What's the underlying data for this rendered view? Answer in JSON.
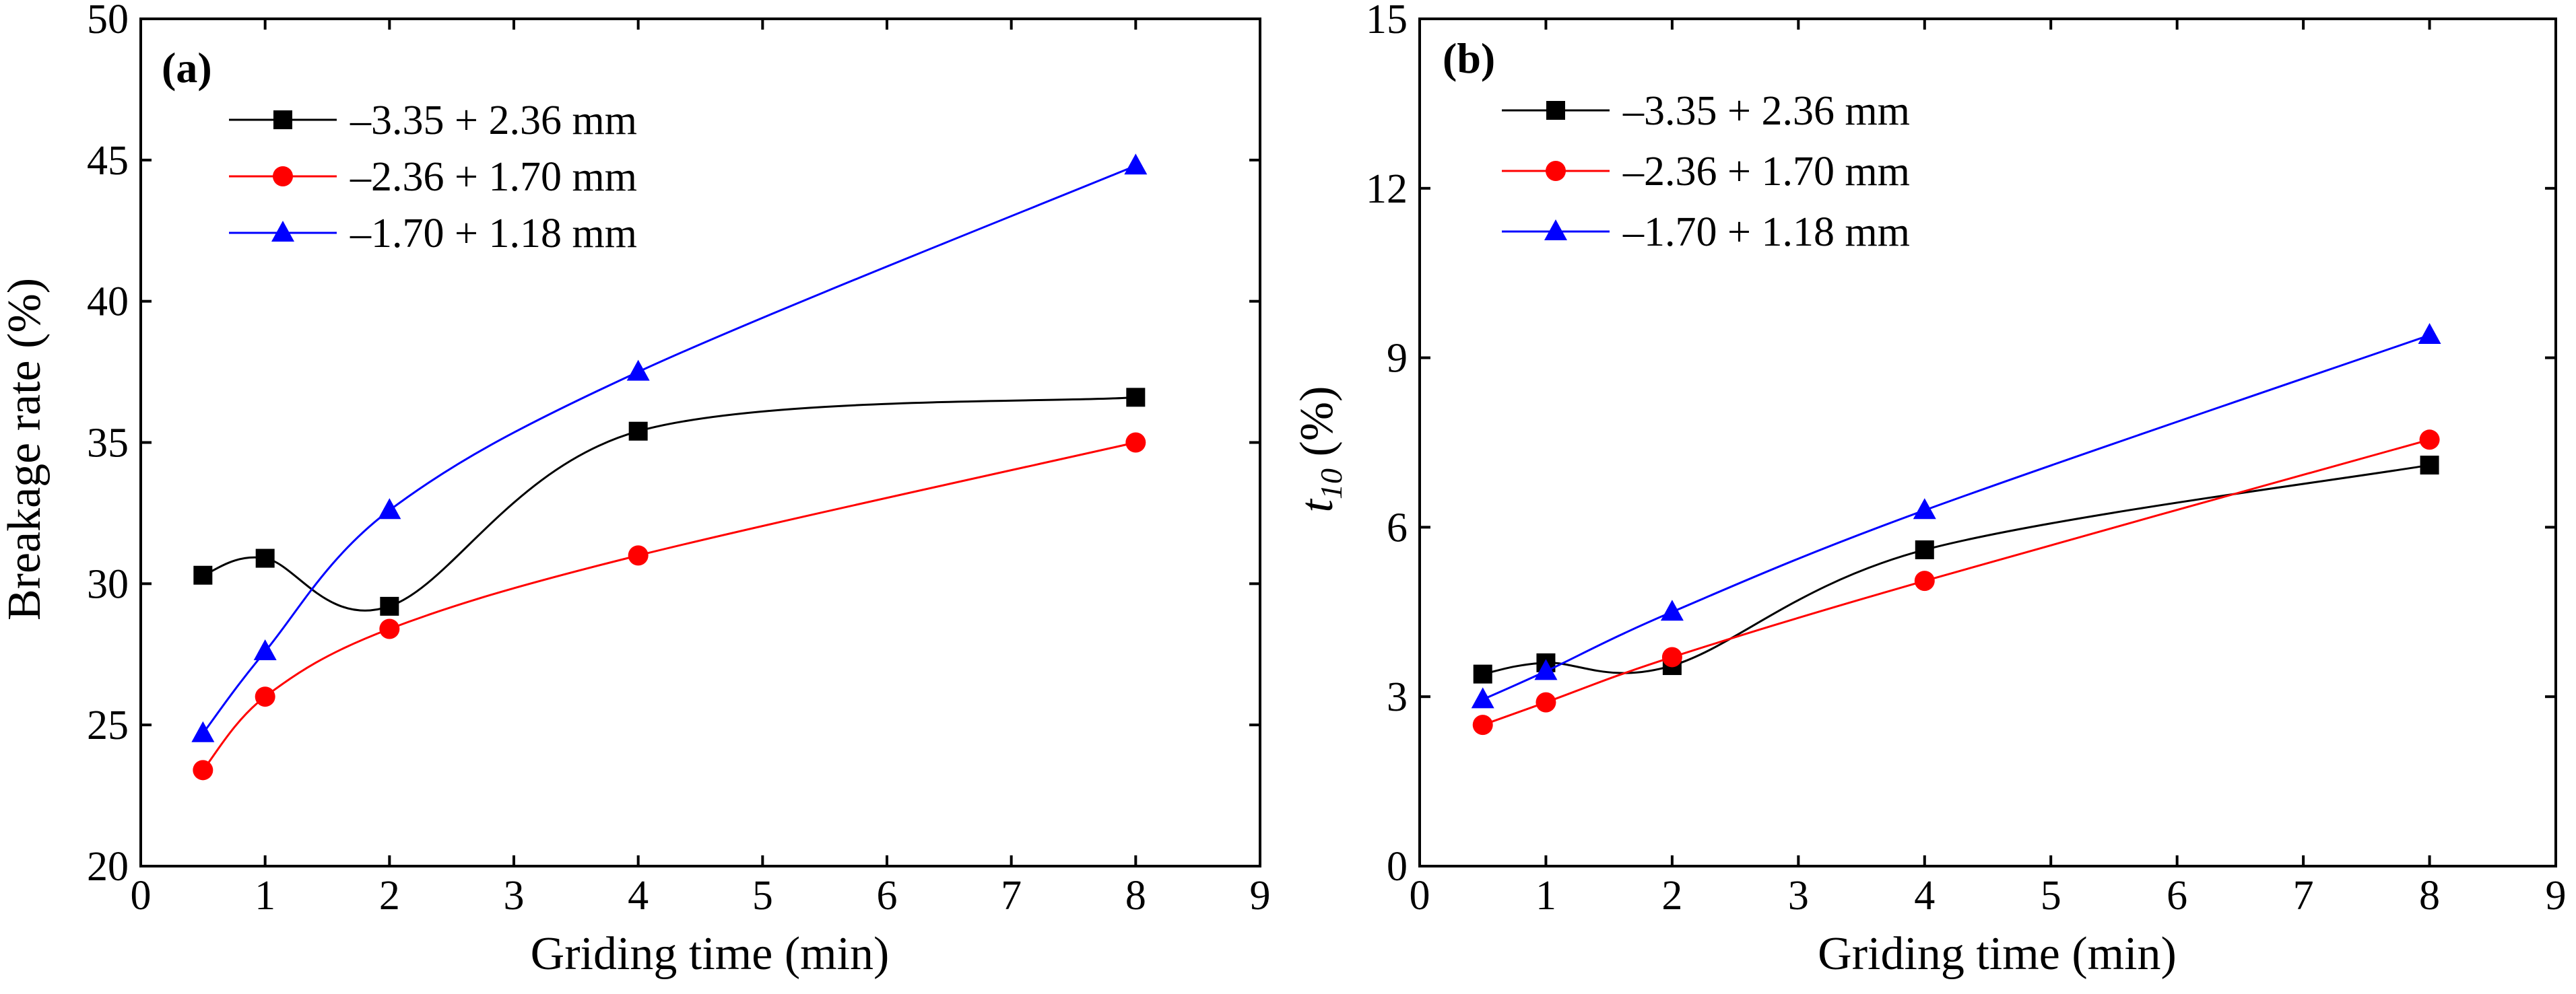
{
  "chart_data": [
    {
      "type": "line",
      "panel_label": "(a)",
      "xlabel": "Griding time (min)",
      "ylabel": "Breakage rate (%)",
      "xlim": [
        0,
        9
      ],
      "ylim": [
        20,
        50
      ],
      "xticks": [
        0,
        1,
        2,
        3,
        4,
        5,
        6,
        7,
        8,
        9
      ],
      "yticks": [
        20,
        25,
        30,
        35,
        40,
        45,
        50
      ],
      "x": [
        0.5,
        1,
        2,
        4,
        8
      ],
      "legend_position": "upper-left",
      "series": [
        {
          "name": "–3.35 + 2.36 mm",
          "color": "#000000",
          "marker": "square",
          "values": [
            30.3,
            30.9,
            29.2,
            35.4,
            36.6
          ]
        },
        {
          "name": "–2.36 + 1.70 mm",
          "color": "#ff0000",
          "marker": "circle",
          "values": [
            23.4,
            26.0,
            28.4,
            31.0,
            35.0
          ]
        },
        {
          "name": "–1.70 + 1.18 mm",
          "color": "#0000ff",
          "marker": "triangle",
          "values": [
            24.7,
            27.6,
            32.6,
            37.5,
            44.8
          ]
        }
      ]
    },
    {
      "type": "line",
      "panel_label": "(b)",
      "xlabel": "Griding time (min)",
      "ylabel": "t10 (%)",
      "ylabel_main": "t",
      "ylabel_sub": "10",
      "ylabel_suffix": " (%)",
      "xlim": [
        0,
        9
      ],
      "ylim": [
        0,
        15
      ],
      "xticks": [
        0,
        1,
        2,
        3,
        4,
        5,
        6,
        7,
        8,
        9
      ],
      "yticks": [
        0,
        3,
        6,
        9,
        12,
        15
      ],
      "x": [
        0.5,
        1,
        2,
        4,
        8
      ],
      "legend_position": "upper-left",
      "series": [
        {
          "name": "–3.35 + 2.36 mm",
          "color": "#000000",
          "marker": "square",
          "values": [
            3.4,
            3.6,
            3.55,
            5.6,
            7.1
          ]
        },
        {
          "name": "–2.36 + 1.70 mm",
          "color": "#ff0000",
          "marker": "circle",
          "values": [
            2.5,
            2.9,
            3.7,
            5.05,
            7.55
          ]
        },
        {
          "name": "–1.70 + 1.18 mm",
          "color": "#0000ff",
          "marker": "triangle",
          "values": [
            2.95,
            3.45,
            4.5,
            6.3,
            9.4
          ]
        }
      ]
    }
  ]
}
